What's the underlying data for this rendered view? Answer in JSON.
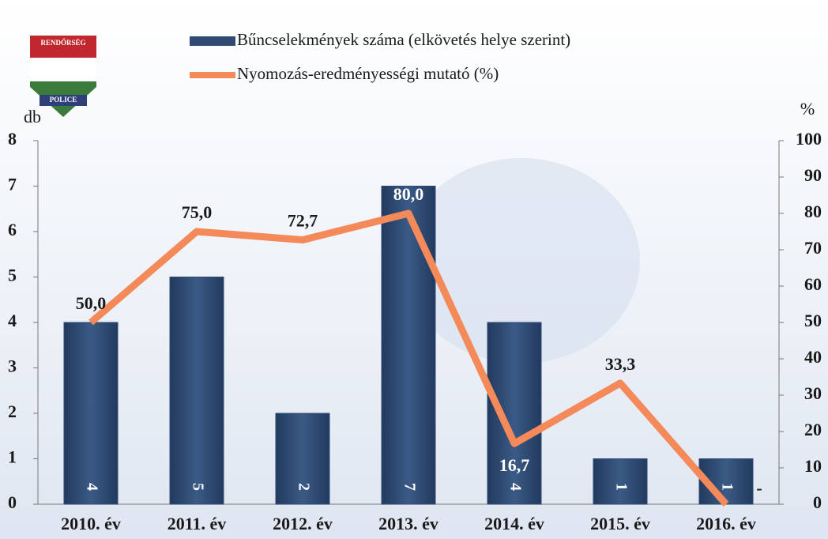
{
  "logo": {
    "top": "RENDŐRSÉG",
    "bottom": "POLICE"
  },
  "chart_data": {
    "type": "bar",
    "categories": [
      "2010. év",
      "2011. év",
      "2012. év",
      "2013. év",
      "2014. év",
      "2015. év",
      "2016. év"
    ],
    "ylabel": "db",
    "y2label": "%",
    "ylim": [
      0,
      8
    ],
    "yticks": [
      0,
      1,
      2,
      3,
      4,
      5,
      6,
      7,
      8
    ],
    "y2lim": [
      0,
      100
    ],
    "y2ticks": [
      0,
      10,
      20,
      30,
      40,
      50,
      60,
      70,
      80,
      90,
      100
    ],
    "series": [
      {
        "name": "Bűncselekmények száma (elkövetés helye szerint)",
        "type": "bar",
        "color": "#2f4b74",
        "values": [
          4,
          5,
          2,
          7,
          4,
          1,
          1
        ]
      },
      {
        "name": "Nyomozás-eredményességi mutató (%)",
        "type": "line",
        "axis": "y2",
        "color": "#f4895a",
        "values": [
          50.0,
          75.0,
          72.7,
          80.0,
          16.7,
          33.3,
          0
        ],
        "value_labels": [
          "50,0",
          "75,0",
          "72,7",
          "80,0",
          "16,7",
          "33,3",
          "-"
        ]
      }
    ]
  }
}
